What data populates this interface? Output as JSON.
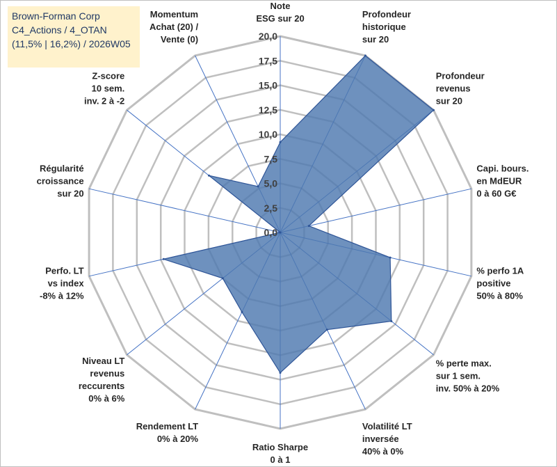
{
  "info_box": {
    "line1": "Brown-Forman Corp",
    "line2": "C4_Actions / 4_OTAN",
    "line3": "(11,5% | 16,2%) / 2026W05"
  },
  "colors": {
    "fill": "#4e79b0",
    "grid": "#bfbfbf",
    "spoke": "#4472c4",
    "box": "#fff2cc"
  },
  "chart_data": {
    "type": "radar",
    "title": "",
    "rlim": [
      0,
      20
    ],
    "grid": true,
    "rticks": [
      "0,0",
      "2,5",
      "5,0",
      "7,5",
      "10,0",
      "12,5",
      "15,0",
      "17,5",
      "20,0"
    ],
    "axes": [
      [
        "Note",
        "ESG sur 20"
      ],
      [
        "Profondeur",
        "historique",
        "sur 20"
      ],
      [
        "Profondeur",
        "revenus",
        "sur 20"
      ],
      [
        "Capi. bours.",
        "en MdEUR",
        "0 à 60 G€"
      ],
      [
        "% perfo 1A",
        "positive",
        "50% à 80%"
      ],
      [
        "% perte max.",
        "sur 1 sem.",
        "inv. 50% à 20%"
      ],
      [
        "Volatilité LT",
        "inversée",
        "40% à 0%"
      ],
      [
        "Ratio Sharpe",
        "0 à 1"
      ],
      [
        "Rendement LT",
        "0% à 20%"
      ],
      [
        "Niveau LT",
        "revenus",
        "reccurents",
        "0% à 6%"
      ],
      [
        "Perfo. LT",
        "vs index",
        "-8% à 12%"
      ],
      [
        "Régularité",
        "croissance",
        "sur 20"
      ],
      [
        "Z-score",
        "10 sem.",
        "inv. 2 à -2"
      ],
      [
        "Momentum",
        "Achat (20) /",
        "Vente (0)"
      ]
    ],
    "series": [
      {
        "values": [
          9.2,
          20.0,
          20.0,
          3.0,
          11.5,
          14.5,
          11.0,
          14.3,
          9.0,
          7.5,
          12.2,
          0.0,
          9.3,
          5.2
        ]
      }
    ]
  }
}
